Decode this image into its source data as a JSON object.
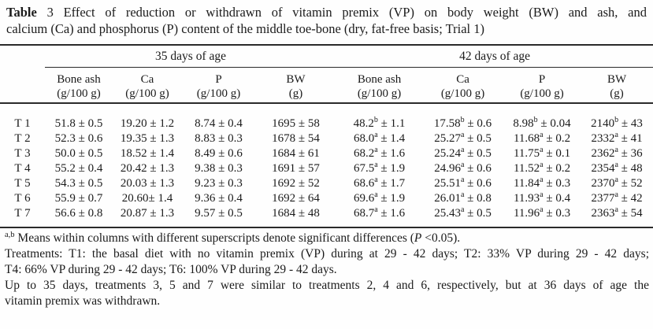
{
  "title": {
    "bold": "Table",
    "line1_rest": " 3 Effect of reduction or withdrawn of vitamin premix (VP) on body weight (BW) and ash, and",
    "line2": "calcium (Ca) and phosphorus (P) content of the middle toe-bone (dry, fat-free basis; Trial 1)"
  },
  "table": {
    "groups": [
      {
        "label": "35 days of age"
      },
      {
        "label": "42 days of age"
      }
    ],
    "columns": [
      {
        "name": "Bone ash",
        "unit": "(g/100 g)"
      },
      {
        "name": "Ca",
        "unit": "(g/100 g)"
      },
      {
        "name": "P",
        "unit": "(g/100 g)"
      },
      {
        "name": "BW",
        "unit": "(g)"
      },
      {
        "name": "Bone ash",
        "unit": "(g/100 g)"
      },
      {
        "name": "Ca",
        "unit": "(g/100 g)"
      },
      {
        "name": "P",
        "unit": "(g/100 g)"
      },
      {
        "name": "BW",
        "unit": "(g)"
      }
    ],
    "rows": [
      {
        "label": "T 1",
        "cells": [
          {
            "v": "51.8",
            "s": "",
            "p": " ± 0.5"
          },
          {
            "v": "19.20",
            "s": "",
            "p": " ± 1.2"
          },
          {
            "v": "8.74",
            "s": "",
            "p": " ± 0.4"
          },
          {
            "v": "1695",
            "s": "",
            "p": " ± 58"
          },
          {
            "v": "48.2",
            "s": "b",
            "p": " ± 1.1"
          },
          {
            "v": "17.58",
            "s": "b",
            "p": " ± 0.6"
          },
          {
            "v": "8.98",
            "s": "b",
            "p": " ± 0.04"
          },
          {
            "v": "2140",
            "s": "b",
            "p": " ± 43"
          }
        ]
      },
      {
        "label": "T 2",
        "cells": [
          {
            "v": "52.3",
            "s": "",
            "p": " ± 0.6"
          },
          {
            "v": "19.35",
            "s": "",
            "p": " ± 1.3"
          },
          {
            "v": "8.83",
            "s": "",
            "p": " ± 0.3"
          },
          {
            "v": "1678",
            "s": "",
            "p": " ± 54"
          },
          {
            "v": "68.0",
            "s": "a",
            "p": " ± 1.4"
          },
          {
            "v": "25.27",
            "s": "a",
            "p": " ± 0.5"
          },
          {
            "v": "11.68",
            "s": "a",
            "p": " ± 0.2"
          },
          {
            "v": "2332",
            "s": "a",
            "p": " ± 41"
          }
        ]
      },
      {
        "label": "T 3",
        "cells": [
          {
            "v": "50.0",
            "s": "",
            "p": " ± 0.5"
          },
          {
            "v": "18.52",
            "s": "",
            "p": " ± 1.4"
          },
          {
            "v": "8.49",
            "s": "",
            "p": " ± 0.6"
          },
          {
            "v": "1684",
            "s": "",
            "p": " ± 61"
          },
          {
            "v": "68.2",
            "s": "a",
            "p": " ± 1.6"
          },
          {
            "v": "25.24",
            "s": "a",
            "p": " ± 0.5"
          },
          {
            "v": "11.75",
            "s": "a",
            "p": " ± 0.1"
          },
          {
            "v": "2362",
            "s": "a",
            "p": " ± 36"
          }
        ]
      },
      {
        "label": "T 4",
        "cells": [
          {
            "v": "55.2",
            "s": "",
            "p": " ± 0.4"
          },
          {
            "v": "20.42",
            "s": "",
            "p": " ± 1.3"
          },
          {
            "v": "9.38",
            "s": "",
            "p": " ± 0.3"
          },
          {
            "v": "1691",
            "s": "",
            "p": " ± 57"
          },
          {
            "v": "67.5",
            "s": "a",
            "p": " ± 1.9"
          },
          {
            "v": "24.96",
            "s": "a",
            "p": " ± 0.6"
          },
          {
            "v": "11.52",
            "s": "a",
            "p": " ± 0.2"
          },
          {
            "v": "2354",
            "s": "a",
            "p": " ± 48"
          }
        ]
      },
      {
        "label": "T 5",
        "cells": [
          {
            "v": "54.3",
            "s": "",
            "p": " ± 0.5"
          },
          {
            "v": "20.03",
            "s": "",
            "p": " ± 1.3"
          },
          {
            "v": "9.23",
            "s": "",
            "p": " ± 0.3"
          },
          {
            "v": "1692",
            "s": "",
            "p": " ± 52"
          },
          {
            "v": "68.6",
            "s": "a",
            "p": " ± 1.7"
          },
          {
            "v": "25.51",
            "s": "a",
            "p": " ± 0.6"
          },
          {
            "v": "11.84",
            "s": "a",
            "p": " ± 0.3"
          },
          {
            "v": "2370",
            "s": "a",
            "p": " ± 52"
          }
        ]
      },
      {
        "label": "T 6",
        "cells": [
          {
            "v": "55.9",
            "s": "",
            "p": " ± 0.7"
          },
          {
            "v": "20.60",
            "s": "",
            "p": "± 1.4"
          },
          {
            "v": "9.36",
            "s": "",
            "p": " ± 0.4"
          },
          {
            "v": "1692",
            "s": "",
            "p": " ± 64"
          },
          {
            "v": "69.6",
            "s": "a",
            "p": " ± 1.9"
          },
          {
            "v": "26.01",
            "s": "a",
            "p": " ± 0.8"
          },
          {
            "v": "11.93",
            "s": "a",
            "p": " ± 0.4"
          },
          {
            "v": "2377",
            "s": "a",
            "p": " ± 42"
          }
        ]
      },
      {
        "label": "T 7",
        "cells": [
          {
            "v": "56.6",
            "s": "",
            "p": " ± 0.8"
          },
          {
            "v": "20.87",
            "s": "",
            "p": " ± 1.3"
          },
          {
            "v": "9.57",
            "s": "",
            "p": " ± 0.5"
          },
          {
            "v": "1684",
            "s": "",
            "p": " ± 48"
          },
          {
            "v": "68.7",
            "s": "a",
            "p": " ± 1.6"
          },
          {
            "v": "25.43",
            "s": "a",
            "p": " ± 0.5"
          },
          {
            "v": "11.96",
            "s": "a",
            "p": " ± 0.3"
          },
          {
            "v": "2363",
            "s": "a",
            "p": " ± 54"
          }
        ]
      }
    ]
  },
  "footnotes": {
    "fn1": {
      "sup": "a,b",
      "pre": " Means within columns with different superscripts denote significant differences (",
      "italic": "P",
      "post": " <0.05)."
    },
    "fn2_line1": "Treatments: T1: the basal diet with no vitamin premix (VP) during at 29 - 42 days; T2: 33% VP during 29 - 42 days;",
    "fn2_line2": "T4: 66% VP during 29 - 42 days; T6: 100% VP during 29 - 42 days.",
    "fn3_line1": "Up to 35 days, treatments 3, 5 and 7 were similar to treatments 2, 4 and 6, respectively, but at 36 days of age the",
    "fn3_line2": "vitamin premix was withdrawn."
  }
}
